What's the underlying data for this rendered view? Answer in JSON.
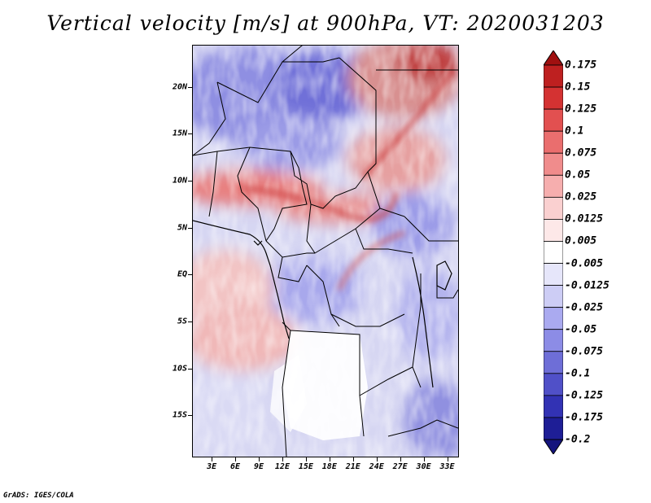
{
  "title": "Vertical velocity [m/s] at 900hPa, VT: 2020031203",
  "footer": "GrADS: IGES/COLA",
  "map": {
    "lat_ticks": [
      "20N",
      "15N",
      "10N",
      "5N",
      "EQ",
      "5S",
      "10S",
      "15S"
    ],
    "lon_ticks": [
      "3E",
      "6E",
      "9E",
      "12E",
      "15E",
      "18E",
      "21E",
      "24E",
      "27E",
      "30E",
      "33E"
    ],
    "lat_range": [
      -19.5,
      24.5
    ],
    "lon_range": [
      0.5,
      34.5
    ]
  },
  "colorbar": {
    "levels": [
      "0.175",
      "0.15",
      "0.125",
      "0.1",
      "0.075",
      "0.05",
      "0.025",
      "0.0125",
      "0.005",
      "-0.005",
      "-0.0125",
      "-0.025",
      "-0.05",
      "-0.075",
      "-0.1",
      "-0.125",
      "-0.175",
      "-0.2"
    ],
    "colors": [
      "#a01010",
      "#be2020",
      "#d43232",
      "#e25050",
      "#ea6e6e",
      "#f08c8c",
      "#f6aeae",
      "#fad0d0",
      "#fde8e8",
      "#ffffff",
      "#e6e6fa",
      "#cdcdf5",
      "#aaaaf0",
      "#8c8ce6",
      "#6e6ed7",
      "#5050c8",
      "#3232b4",
      "#1e1e96",
      "#14147d"
    ]
  }
}
